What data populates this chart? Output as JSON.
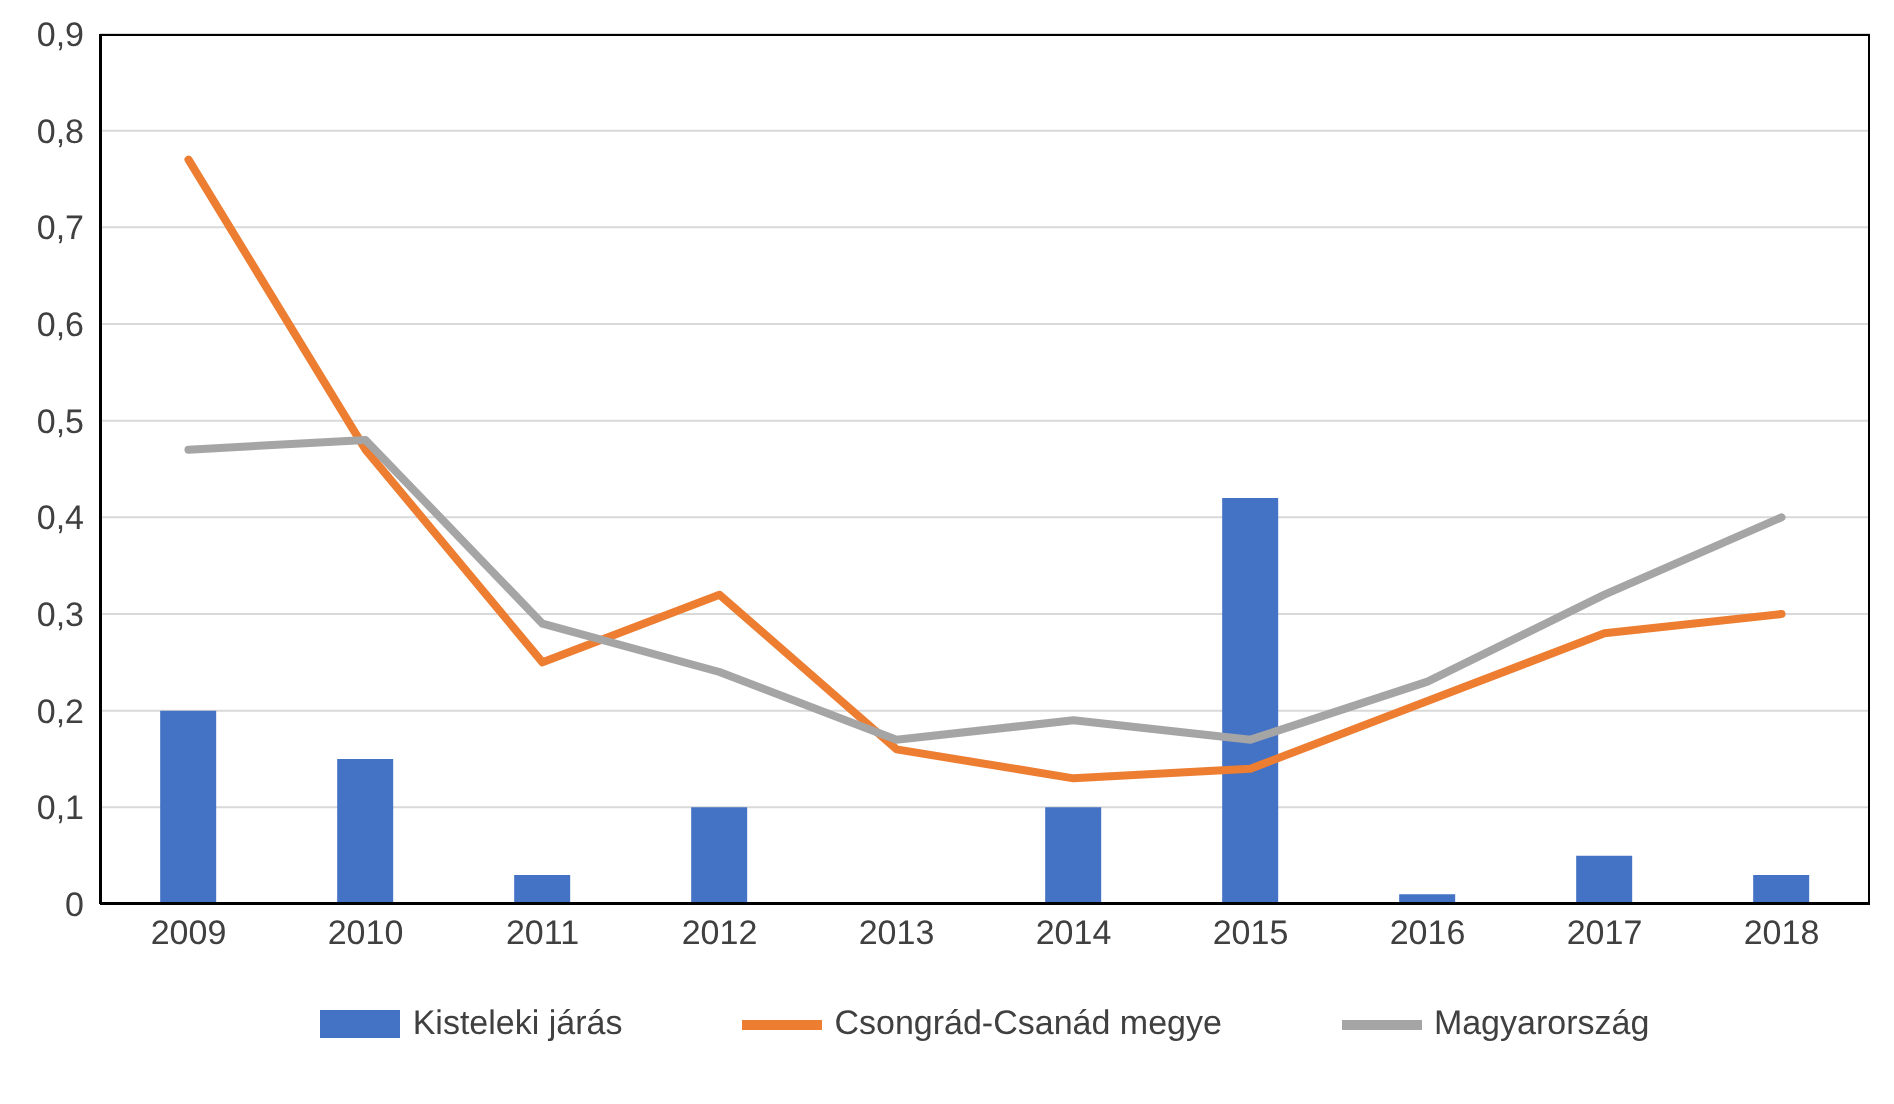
{
  "chart_data": {
    "type": "bar",
    "categories": [
      "2009",
      "2010",
      "2011",
      "2012",
      "2013",
      "2014",
      "2015",
      "2016",
      "2017",
      "2018"
    ],
    "series": [
      {
        "name": "Kisteleki járás",
        "color": "#4472c4",
        "values": [
          0.2,
          0.15,
          0.03,
          0.1,
          0,
          0.1,
          0.42,
          0.01,
          0.05,
          0.03
        ]
      },
      {
        "name": "Csongrád-Csanád megye",
        "type": "line",
        "color": "#ed7d31",
        "values": [
          0.77,
          0.47,
          0.25,
          0.32,
          0.16,
          0.13,
          0.14,
          0.21,
          0.28,
          0.3
        ]
      },
      {
        "name": "Magyarország",
        "type": "line",
        "color": "#a5a5a5",
        "values": [
          0.47,
          0.48,
          0.29,
          0.24,
          0.17,
          0.19,
          0.17,
          0.23,
          0.32,
          0.4
        ]
      }
    ],
    "ylim": [
      0,
      0.9
    ],
    "yticks": [
      0,
      {
        "value": 0.1,
        "label": "0,1"
      },
      {
        "value": 0.2,
        "label": "0,2"
      },
      {
        "value": 0.3,
        "label": "0,3"
      },
      {
        "value": 0.4,
        "label": "0,4"
      },
      {
        "value": 0.5,
        "label": "0,5"
      },
      {
        "value": 0.6,
        "label": "0,6"
      },
      {
        "value": 0.7,
        "label": "0,7"
      },
      {
        "value": 0.8,
        "label": "0,8"
      },
      {
        "value": 0.9,
        "label": "0,9"
      }
    ],
    "grid": "y",
    "legend": "bottom",
    "marker": "none",
    "line_style": "solid"
  }
}
